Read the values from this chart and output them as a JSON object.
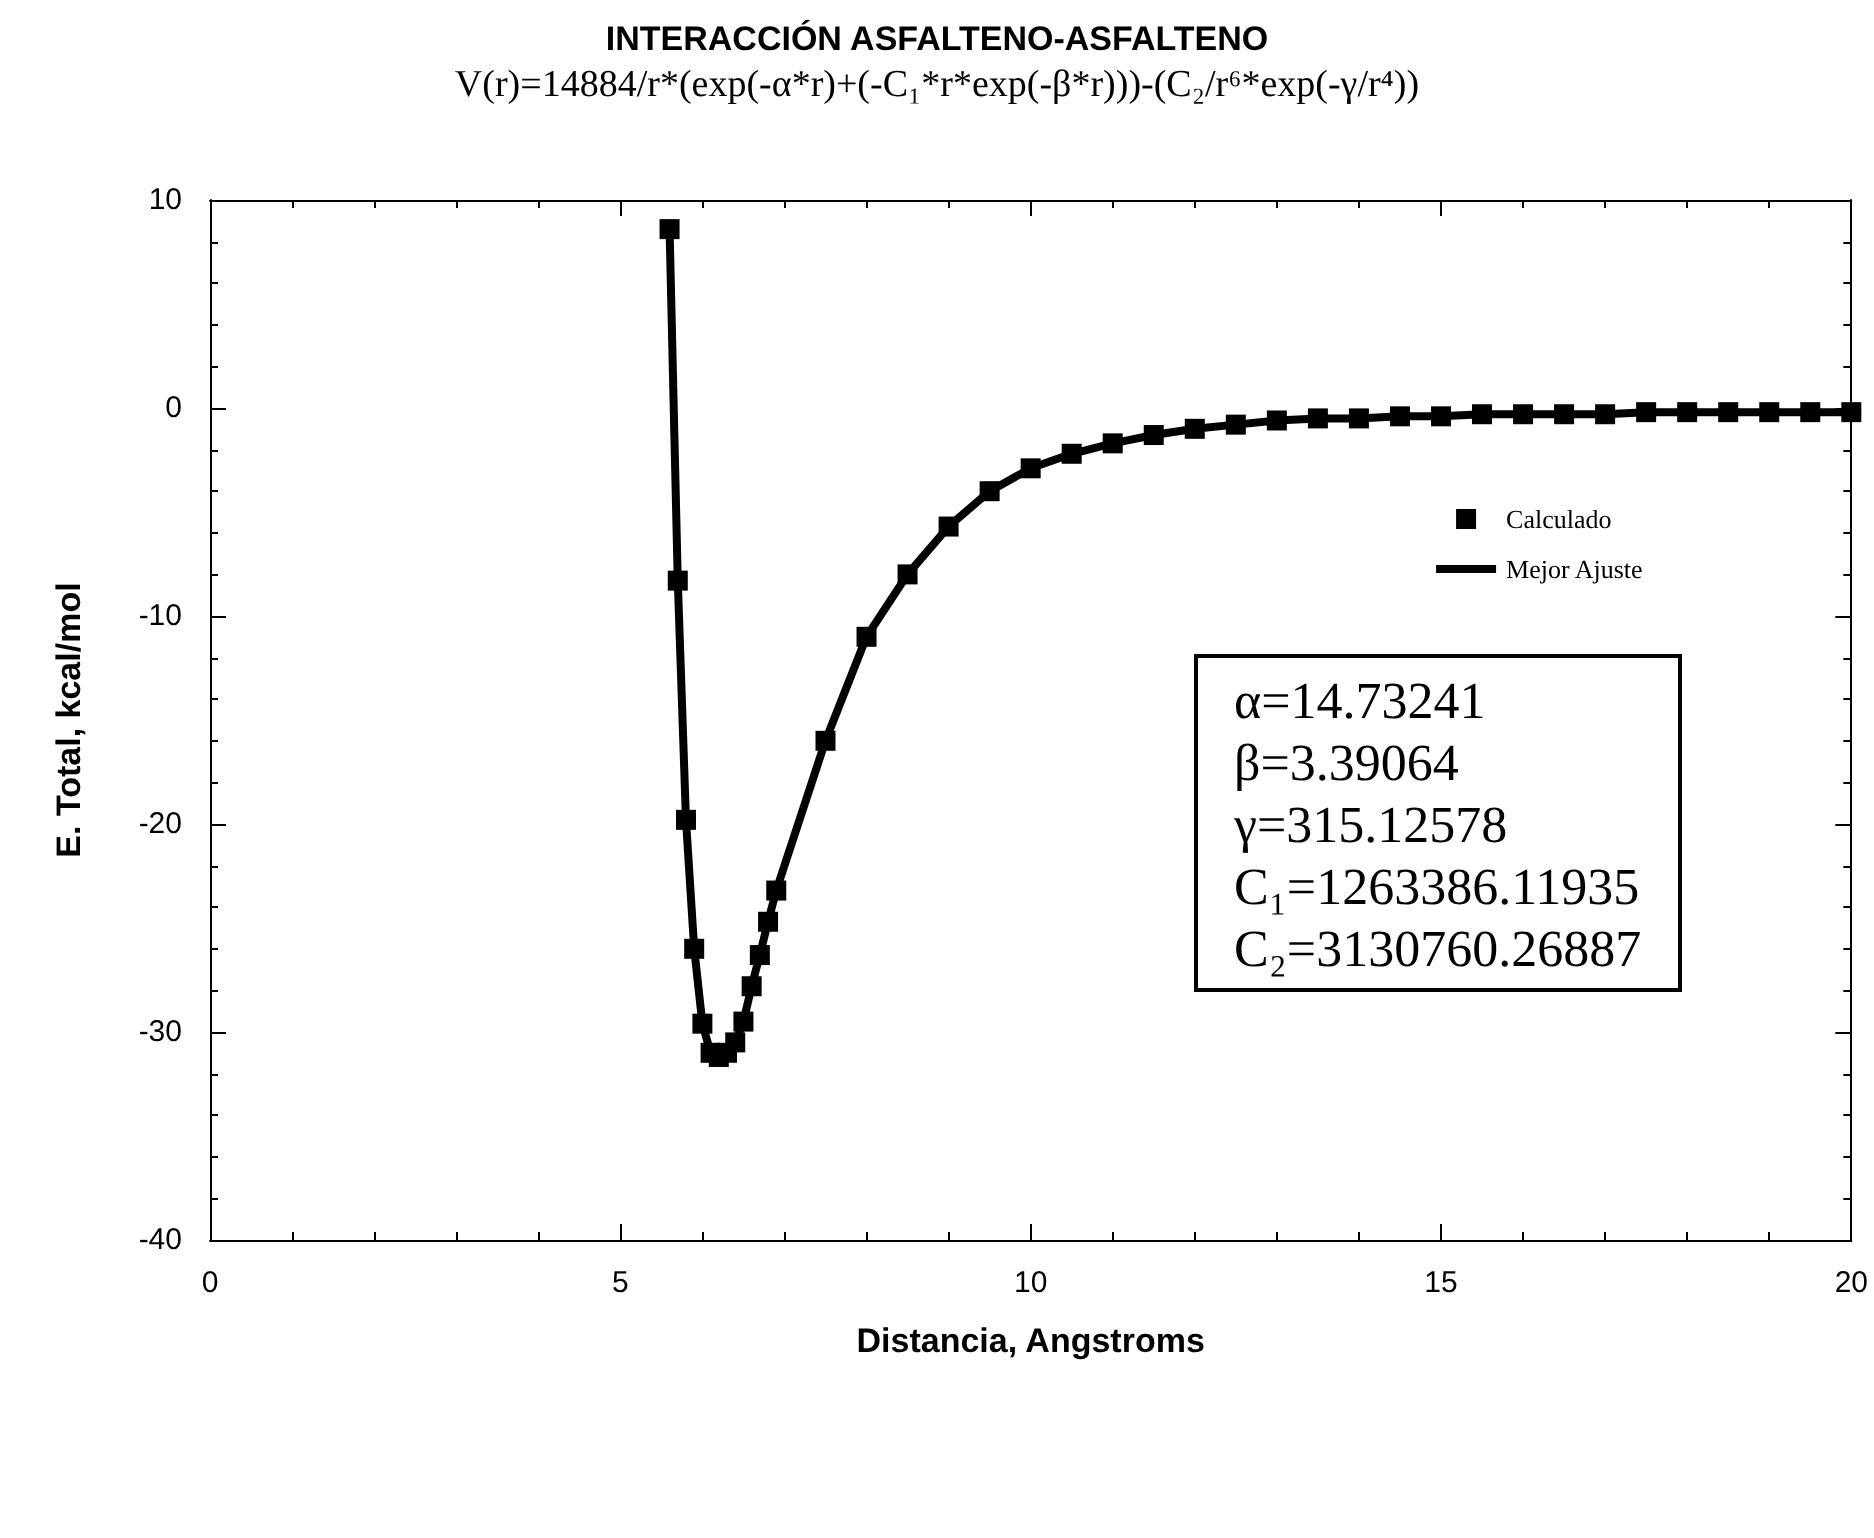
{
  "chart_data": {
    "type": "scatter",
    "title": "INTERACCIÓN ASFALTENO-ASFALTENO",
    "subtitle": "V(r)=14884/r*(exp(-α*r)+(-C₁*r*exp(-β*r)))-(C₂/r⁶*exp(-γ/r⁴))",
    "xlabel": "Distancia, Angstroms",
    "ylabel": "E. Total, kcal/mol",
    "xlim": [
      0,
      20
    ],
    "xticks": [
      0,
      5,
      10,
      15,
      20
    ],
    "ylim": [
      -40,
      10
    ],
    "yticks": [
      -40,
      -30,
      -20,
      -10,
      0,
      10
    ],
    "grid": false,
    "legend": "top right",
    "annotations": [
      "α=14.73241",
      "β=3.39064",
      "γ=315.12578",
      "C₁=1263386.11935",
      "C₂=3130760.26887"
    ],
    "series": [
      {
        "name": "Calculado",
        "type": "scatter",
        "marker": "square",
        "color": "#000000",
        "x": [
          5.6,
          5.7,
          5.8,
          5.9,
          6.0,
          6.1,
          6.2,
          6.3,
          6.4,
          6.5,
          6.6,
          6.7,
          6.8,
          6.9,
          7.5,
          8.0,
          8.5,
          9.0,
          9.5,
          10.0,
          10.5,
          11.0,
          11.5,
          12.0,
          12.5,
          13.0,
          13.5,
          14.0,
          14.5,
          15.0,
          15.5,
          16.0,
          16.5,
          17.0,
          17.5,
          18.0,
          18.5,
          19.0,
          19.5,
          20.0
        ],
        "values": [
          8.6,
          -8.3,
          -19.8,
          -26,
          -29.6,
          -31,
          -31.2,
          -31,
          -30.5,
          -29.5,
          -27.8,
          -26.3,
          -24.7,
          -23.2,
          -16,
          -11,
          -8,
          -5.7,
          -4.0,
          -2.9,
          -2.2,
          -1.7,
          -1.3,
          -1.0,
          -0.8,
          -0.6,
          -0.5,
          -0.5,
          -0.4,
          -0.4,
          -0.3,
          -0.3,
          -0.3,
          -0.3,
          -0.2,
          -0.2,
          -0.2,
          -0.2,
          -0.2,
          -0.2
        ]
      },
      {
        "name": "Mejor Ajuste",
        "type": "line",
        "marker": "none",
        "line_style": "solid",
        "color": "#000000",
        "x": [
          5.6,
          5.7,
          5.8,
          5.9,
          6.0,
          6.1,
          6.2,
          6.3,
          6.4,
          6.5,
          6.6,
          6.7,
          6.8,
          6.9,
          7.5,
          8.0,
          8.5,
          9.0,
          9.5,
          10.0,
          10.5,
          11.0,
          11.5,
          12.0,
          12.5,
          13.0,
          13.5,
          14.0,
          14.5,
          15.0,
          15.5,
          16.0,
          16.5,
          17.0,
          17.5,
          18.0,
          18.5,
          19.0,
          19.5,
          20.0
        ],
        "values": [
          8.6,
          -8.3,
          -19.8,
          -26,
          -29.6,
          -31,
          -31.2,
          -31,
          -30.5,
          -29.5,
          -27.8,
          -26.3,
          -24.7,
          -23.2,
          -16,
          -11,
          -8,
          -5.7,
          -4.0,
          -2.9,
          -2.2,
          -1.7,
          -1.3,
          -1.0,
          -0.8,
          -0.6,
          -0.5,
          -0.5,
          -0.4,
          -0.4,
          -0.3,
          -0.3,
          -0.3,
          -0.3,
          -0.2,
          -0.2,
          -0.2,
          -0.2,
          -0.2,
          -0.2
        ]
      }
    ]
  }
}
